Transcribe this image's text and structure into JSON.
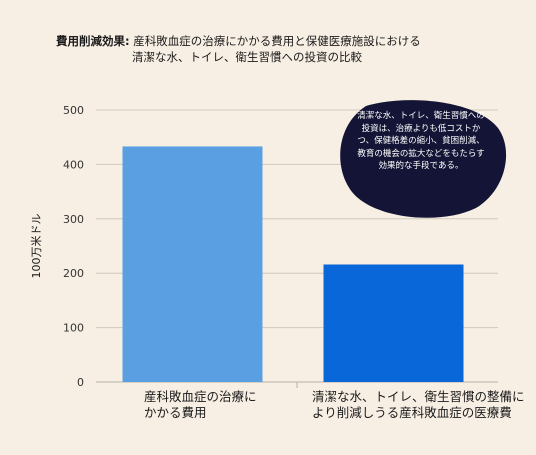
{
  "title": {
    "lead": "費用削減効果:",
    "line1": "産科敗血症の治療にかかる費用と保健医療施設における",
    "line2": "清潔な水、トイレ、衛生習慣への投資の比較"
  },
  "annotation": {
    "text": "清潔な水、トイレ、衛生習慣への投資は、治療よりも低コストかつ、保健格差の縮小、貧困削減、教育の機会の拡大などをもたらす効果的な手段である。",
    "fill": "#141536"
  },
  "chart_data": {
    "type": "bar",
    "title": "費用削減効果: 産科敗血症の治療にかかる費用と保健医療施設における清潔な水、トイレ、衛生習慣への投資の比較",
    "ylabel": "100万米ドル",
    "xlabel": "",
    "ylim": [
      0,
      500
    ],
    "yticks": [
      0,
      100,
      200,
      300,
      400,
      500
    ],
    "grid": true,
    "categories": [
      "産科敗血症の治療にかかる費用",
      "清潔な水、トイレ、衛生習慣の整備により削減しうる産科敗血症の医療費"
    ],
    "category_lines": [
      [
        "産科敗血症の治療に",
        "かかる費用"
      ],
      [
        "清潔な水、トイレ、衛生習慣の整備に",
        "より削減しうる産科敗血症の医療費"
      ]
    ],
    "values": [
      433,
      216
    ],
    "colors": [
      "#5b9fe3",
      "#0a67d9"
    ]
  }
}
